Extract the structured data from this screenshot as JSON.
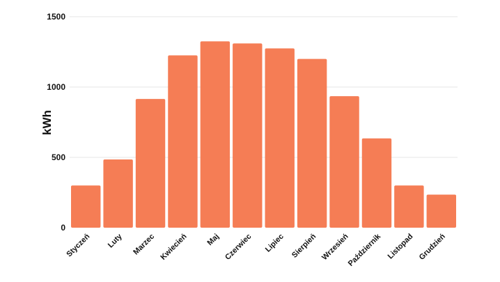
{
  "chart_data": {
    "type": "bar",
    "title": "",
    "xlabel": "",
    "ylabel": "kWh",
    "ylim": [
      0,
      1500
    ],
    "yticks": [
      0,
      500,
      1000,
      1500
    ],
    "grid": true,
    "bar_color": "#F57D55",
    "categories": [
      "Styczeń",
      "Luty",
      "Marzec",
      "Kwiecień",
      "Maj",
      "Czerwiec",
      "Lipiec",
      "Sierpień",
      "Wrzesień",
      "Październik",
      "Listopad",
      "Grudzień"
    ],
    "values": [
      300,
      485,
      915,
      1225,
      1325,
      1310,
      1275,
      1200,
      935,
      635,
      300,
      235
    ]
  }
}
